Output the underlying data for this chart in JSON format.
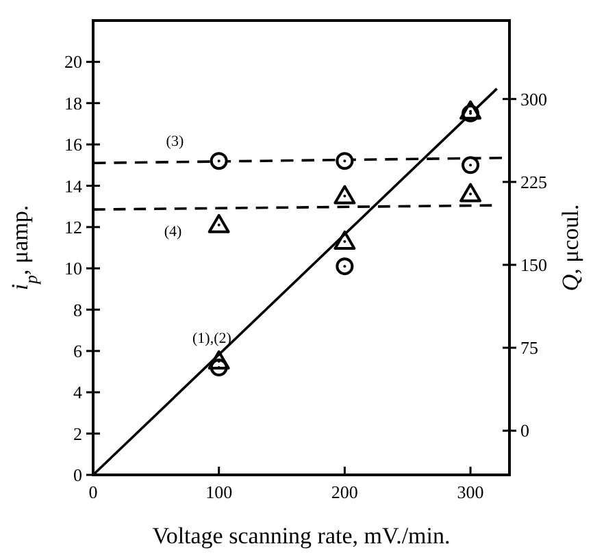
{
  "chart_data": {
    "type": "scatter",
    "xlabel": "Voltage scanning rate, mV./min.",
    "ylabel": "i$_{p}$, μamp.",
    "y2label": "Q, μcoul.",
    "xlim": [
      0,
      331
    ],
    "xticks": [
      0,
      100,
      200,
      300
    ],
    "ylim": [
      0,
      22
    ],
    "yticks": [
      0,
      2,
      4,
      6,
      8,
      10,
      12,
      14,
      16,
      18,
      20
    ],
    "y2lim": [
      -40,
      371
    ],
    "y2ticks": [
      0,
      75,
      150,
      225,
      300
    ],
    "grid": false,
    "legend": false,
    "series": [
      {
        "name": "(1),(2)",
        "type": "line",
        "color": "#000000",
        "line_style": "solid",
        "marker": "none",
        "x": [
          0,
          321
        ],
        "values": [
          0,
          18.7
        ]
      },
      {
        "color": "#000000",
        "marker": "circle",
        "x": [
          100,
          200,
          300
        ],
        "values": [
          5.2,
          10.1,
          17.5
        ]
      },
      {
        "color": "#000000",
        "marker": "triangle",
        "x": [
          100,
          200,
          300
        ],
        "values": [
          5.5,
          11.3,
          17.6
        ]
      },
      {
        "name": "(3)",
        "type": "line",
        "color": "#000000",
        "line_style": "dashed",
        "marker": "none",
        "x": [
          0,
          325
        ],
        "values": [
          15.1,
          15.35
        ]
      },
      {
        "color": "#000000",
        "marker": "circle",
        "x": [
          100,
          200,
          300
        ],
        "values": [
          15.2,
          15.2,
          15.0
        ]
      },
      {
        "name": "(4)",
        "type": "line",
        "color": "#000000",
        "line_style": "dashed",
        "marker": "none",
        "x": [
          0,
          317
        ],
        "values": [
          12.85,
          13.05
        ]
      },
      {
        "color": "#000000",
        "marker": "triangle",
        "x": [
          100,
          200,
          300
        ],
        "values": [
          12.1,
          13.5,
          13.6
        ]
      }
    ]
  }
}
